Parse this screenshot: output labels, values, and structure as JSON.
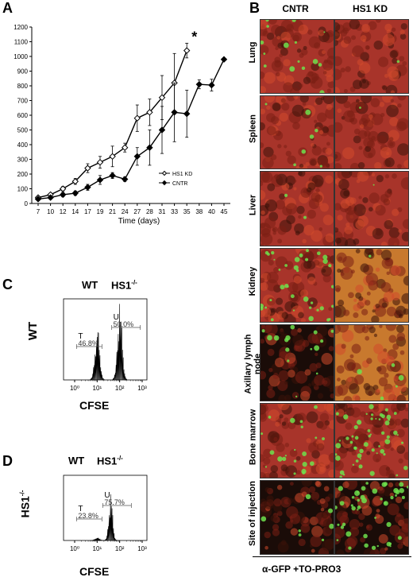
{
  "panels": {
    "a": "A",
    "b": "B",
    "c": "C",
    "d": "D"
  },
  "chart_data": {
    "type": "line",
    "title": "",
    "xlabel": "Time (days)",
    "ylabel": "",
    "x_ticks": [
      "7",
      "10",
      "12",
      "14",
      "17",
      "19",
      "21",
      "24",
      "27",
      "28",
      "31",
      "33",
      "35",
      "38",
      "40",
      "45"
    ],
    "ylim": [
      0,
      1200
    ],
    "y_ticks": [
      "0",
      "100",
      "200",
      "300",
      "400",
      "500",
      "600",
      "700",
      "800",
      "900",
      "1000",
      "1100",
      "1200"
    ],
    "series": [
      {
        "name": "HS1 KD",
        "marker": "open-diamond",
        "x": [
          7,
          10,
          12,
          14,
          17,
          19,
          21,
          24,
          27,
          28,
          31,
          33,
          35
        ],
        "y": [
          40,
          60,
          100,
          150,
          240,
          280,
          320,
          380,
          580,
          620,
          720,
          820,
          1040
        ],
        "err": [
          10,
          10,
          15,
          20,
          30,
          40,
          70,
          30,
          90,
          90,
          150,
          200,
          50
        ]
      },
      {
        "name": "CNTR",
        "marker": "filled-diamond",
        "x": [
          7,
          10,
          12,
          14,
          17,
          19,
          21,
          24,
          27,
          28,
          31,
          33,
          35,
          38,
          40,
          45
        ],
        "y": [
          30,
          40,
          60,
          70,
          110,
          160,
          190,
          165,
          320,
          380,
          500,
          620,
          610,
          810,
          805,
          980
        ],
        "err": [
          10,
          10,
          15,
          15,
          20,
          30,
          20,
          15,
          60,
          120,
          160,
          200,
          160,
          30,
          40,
          0
        ]
      }
    ],
    "annotations": [
      "*"
    ],
    "legend": [
      "HS1 KD",
      "CNTR"
    ],
    "legend_position": "bottom-right"
  },
  "panel_b": {
    "columns": [
      "CNTR",
      "HS1 KD"
    ],
    "rows": [
      "Lung",
      "Spleen",
      "Liver",
      "Kidney",
      "Axillary lymph node",
      "Bone marrow",
      "Site of injection"
    ],
    "caption": "α-GFP +TO-PRO3"
  },
  "panel_c": {
    "col_labels": [
      "WT",
      "HS1-/-"
    ],
    "row_label": "WT",
    "gate_t": "T",
    "gate_u": "U",
    "pct_t": "46.8%",
    "pct_u": "50.0%",
    "x_ticks": [
      "10⁰",
      "10¹",
      "10²",
      "10³"
    ],
    "xlabel": "CFSE"
  },
  "panel_d": {
    "col_labels": [
      "WT",
      "HS1-/-"
    ],
    "row_label": "HS1-/-",
    "gate_t": "T",
    "gate_u": "U",
    "pct_t": "23.8%",
    "pct_u": "75.7%",
    "x_ticks": [
      "10⁰",
      "10¹",
      "10²",
      "10³"
    ],
    "xlabel": "CFSE"
  },
  "colors": {
    "tissue_red": "#a8342a",
    "tissue_orange": "#c8792e",
    "gfp_green": "#6ee04c",
    "dark_bg": "#1a0c08"
  }
}
